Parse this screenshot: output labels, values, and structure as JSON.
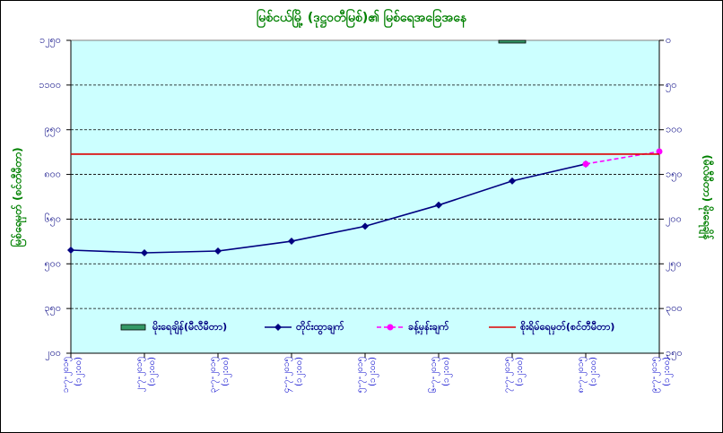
{
  "chart_data": {
    "type": "line",
    "title": "မြစ်ငယ်မြို့ (ဒုဋ္ဌဝတီမြစ်)၏ မြစ်ရေအခြေအနေ",
    "ylabel": "မြစ်ရေမှတ် (စင်တီမီတာ)",
    "y2label": "(မီလီမီတာ) မိုးရေချိန်",
    "categories": [
      "၁-၇-၂၀၁၅",
      "၂-၇-၂၀၁၅",
      "၃-၇-၂၀၁၅",
      "၄-၇-၂၀၁၅",
      "၅-၇-၂၀၁၅",
      "၆-၇-၂၀၁၅",
      "၇-၇-၂၀၁၅",
      "၈-၇-၂၀၁၅",
      "၉-၇-၂၀၁၅"
    ],
    "category_times": [
      "(၁၂:၀၀)",
      "(၁၂:၀၀)",
      "(၁၂:၀၀)",
      "(၁၂:၀၀)",
      "(၁၂:၀၀)",
      "(၁၂:၀၀)",
      "(၁၂:၀၀)",
      "(၁၂:၀၀)",
      "(၁၂:၀၀)"
    ],
    "ylim": [
      200,
      1250
    ],
    "yticks": [
      {
        "value": 200,
        "label": "၂၀၀"
      },
      {
        "value": 350,
        "label": "၃၅၀"
      },
      {
        "value": 500,
        "label": "၅၀၀"
      },
      {
        "value": 650,
        "label": "၆၅၀"
      },
      {
        "value": 800,
        "label": "၈၀၀"
      },
      {
        "value": 950,
        "label": "၉၅၀"
      },
      {
        "value": 1100,
        "label": "၁၁၀၀"
      },
      {
        "value": 1250,
        "label": "၁၂၅၀"
      }
    ],
    "y2lim": [
      0,
      350
    ],
    "y2_reversed": true,
    "y2ticks": [
      {
        "value": 0,
        "label": "၀"
      },
      {
        "value": 50,
        "label": "၅၀"
      },
      {
        "value": 100,
        "label": "၁၀၀"
      },
      {
        "value": 150,
        "label": "၁၅၀"
      },
      {
        "value": 200,
        "label": "၂၀၀"
      },
      {
        "value": 250,
        "label": "၂၅၀"
      },
      {
        "value": 300,
        "label": "၃၀၀"
      },
      {
        "value": 350,
        "label": "၃၅၀"
      }
    ],
    "grid": true,
    "series": [
      {
        "name": "မိုးရေချိန်(မီလီမီတာ)",
        "kind": "bar",
        "axis": "y2",
        "color": "#339966",
        "values": [
          0,
          0,
          0,
          0,
          0,
          0,
          3,
          0,
          0
        ]
      },
      {
        "name": "တိုင်းထွာချက်",
        "kind": "line",
        "color": "#000080",
        "values": [
          546,
          537,
          543,
          576,
          626,
          697,
          778,
          835,
          null
        ]
      },
      {
        "name": "ခန့်မှန်းချက်",
        "kind": "dashed",
        "color": "#ff00ff",
        "values": [
          null,
          null,
          null,
          null,
          null,
          null,
          null,
          835,
          877
        ]
      },
      {
        "name": "စိုးရိမ်ရေမှတ်(စင်တီမီတာ)",
        "kind": "level",
        "color": "#dd0000",
        "value": 868
      }
    ]
  }
}
